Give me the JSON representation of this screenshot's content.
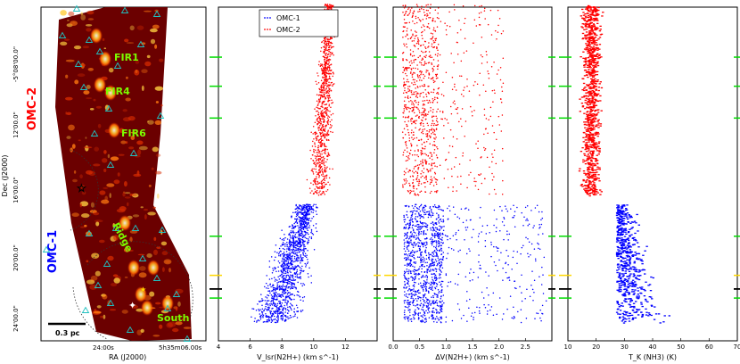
{
  "map_panel": {
    "xlabel": "RA (J2000)",
    "ylabel": "Dec (J2000)",
    "ra_ticks": [
      "24:00s",
      "5h35m06.00s"
    ],
    "dec_ticks": [
      "-5°08'00.0\"",
      "12'00.0\"",
      "16'00.0\"",
      "20'00.0\"",
      "24'00.0\""
    ],
    "regions": [
      {
        "label": "OMC-2",
        "color": "#ff0000"
      },
      {
        "label": "OMC-1",
        "color": "#0000ff"
      }
    ],
    "sources": [
      "FIR1",
      "FIR4",
      "FIR6",
      "Ridge",
      "South"
    ],
    "scalebar_label": "0.3 pc"
  },
  "colors": {
    "omc1": "#0000ff",
    "omc2": "#ff0000",
    "green_marker": "#00dd00",
    "yellow_marker": "#ffd700",
    "black_marker": "#000000"
  },
  "chart_data": [
    {
      "type": "scatter",
      "name": "vlsr",
      "xlabel": "V_lsr(N2H+) (km s^-1)",
      "xlim": [
        4,
        14
      ],
      "xticks": [
        4,
        6,
        8,
        10,
        12
      ],
      "ylim": [
        -5.083,
        -5.45
      ],
      "legend": [
        "OMC-1",
        "OMC-2"
      ],
      "legend_position": "top-left",
      "series": [
        {
          "name": "OMC-2",
          "color": "#ff0000",
          "dec_range": [
            -5.08,
            -5.29
          ],
          "x_center_top": 11.0,
          "x_center_bottom": 10.3,
          "spread": 0.6
        },
        {
          "name": "OMC-1",
          "color": "#0000ff",
          "dec_range": [
            -5.3,
            -5.43
          ],
          "x_center_top": 9.6,
          "x_center_bottom": 7.5,
          "spread": 1.3
        }
      ]
    },
    {
      "type": "scatter",
      "name": "linewidth",
      "xlabel": "ΔV(N2H+) (km s^-1)",
      "xlim": [
        0.0,
        3.0
      ],
      "xticks": [
        "0.0",
        "0.5",
        "1.0",
        "1.5",
        "2.0",
        "2.5"
      ],
      "ylim": [
        -5.083,
        -5.45
      ],
      "series": [
        {
          "name": "OMC-2",
          "color": "#ff0000",
          "dec_range": [
            -5.08,
            -5.29
          ],
          "x_mode": 0.45,
          "x_max": 1.9
        },
        {
          "name": "OMC-1",
          "color": "#0000ff",
          "dec_range": [
            -5.3,
            -5.43
          ],
          "x_mode": 0.5,
          "x_max": 2.7
        }
      ]
    },
    {
      "type": "scatter",
      "name": "tkin",
      "xlabel": "T_K (NH3) (K)",
      "xlim": [
        10,
        70
      ],
      "xticks": [
        10,
        20,
        30,
        40,
        50,
        60,
        70
      ],
      "ylim": [
        -5.083,
        -5.45
      ],
      "series": [
        {
          "name": "OMC-2",
          "color": "#ff0000",
          "dec_range": [
            -5.08,
            -5.29
          ],
          "x_center": 18,
          "spread": 3
        },
        {
          "name": "OMC-1",
          "color": "#0000ff",
          "dec_range": [
            -5.3,
            -5.43
          ],
          "x_center": 27,
          "spread": 12
        }
      ]
    }
  ],
  "dec_markers": [
    {
      "dec": -5.138,
      "color": "green"
    },
    {
      "dec": -5.17,
      "color": "green"
    },
    {
      "dec": -5.205,
      "color": "green"
    },
    {
      "dec": -5.335,
      "color": "green"
    },
    {
      "dec": -5.378,
      "color": "yellow"
    },
    {
      "dec": -5.393,
      "color": "black"
    },
    {
      "dec": -5.403,
      "color": "green"
    }
  ]
}
